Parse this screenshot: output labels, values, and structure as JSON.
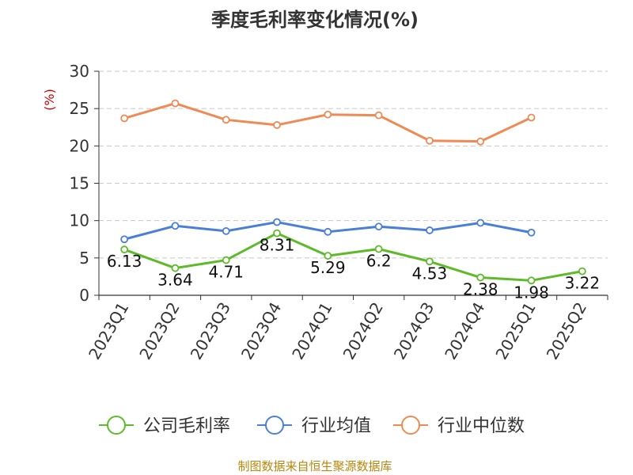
{
  "chart_data": {
    "type": "line",
    "title": "季度毛利率变化情况(%)",
    "ylabel": "(%)",
    "ylim": [
      0,
      30
    ],
    "yticks": [
      0,
      5,
      10,
      15,
      20,
      25,
      30
    ],
    "grid": true,
    "legend_position": "bottom",
    "categories": [
      "2023Q1",
      "2023Q2",
      "2023Q3",
      "2023Q4",
      "2024Q1",
      "2024Q2",
      "2024Q3",
      "2024Q4",
      "2025Q1",
      "2025Q2"
    ],
    "series": [
      {
        "name": "公司毛利率",
        "color": "#5dbb2a",
        "values": [
          6.13,
          3.64,
          4.71,
          8.31,
          5.29,
          6.2,
          4.53,
          2.38,
          1.98,
          3.22
        ],
        "labels": [
          "6.13",
          "3.64",
          "4.71",
          "8.31",
          "5.29",
          "6.2",
          "4.53",
          "2.38",
          "1.98",
          "3.22"
        ]
      },
      {
        "name": "行业均值",
        "color": "#4a7fd8",
        "values": [
          7.5,
          9.3,
          8.6,
          9.8,
          8.5,
          9.2,
          8.7,
          9.7,
          8.4,
          null
        ]
      },
      {
        "name": "行业中位数",
        "color": "#f08a55",
        "values": [
          23.7,
          25.7,
          23.5,
          22.8,
          24.2,
          24.1,
          20.7,
          20.6,
          23.8,
          null
        ]
      }
    ],
    "source": "制图数据来自恒生聚源数据库"
  }
}
